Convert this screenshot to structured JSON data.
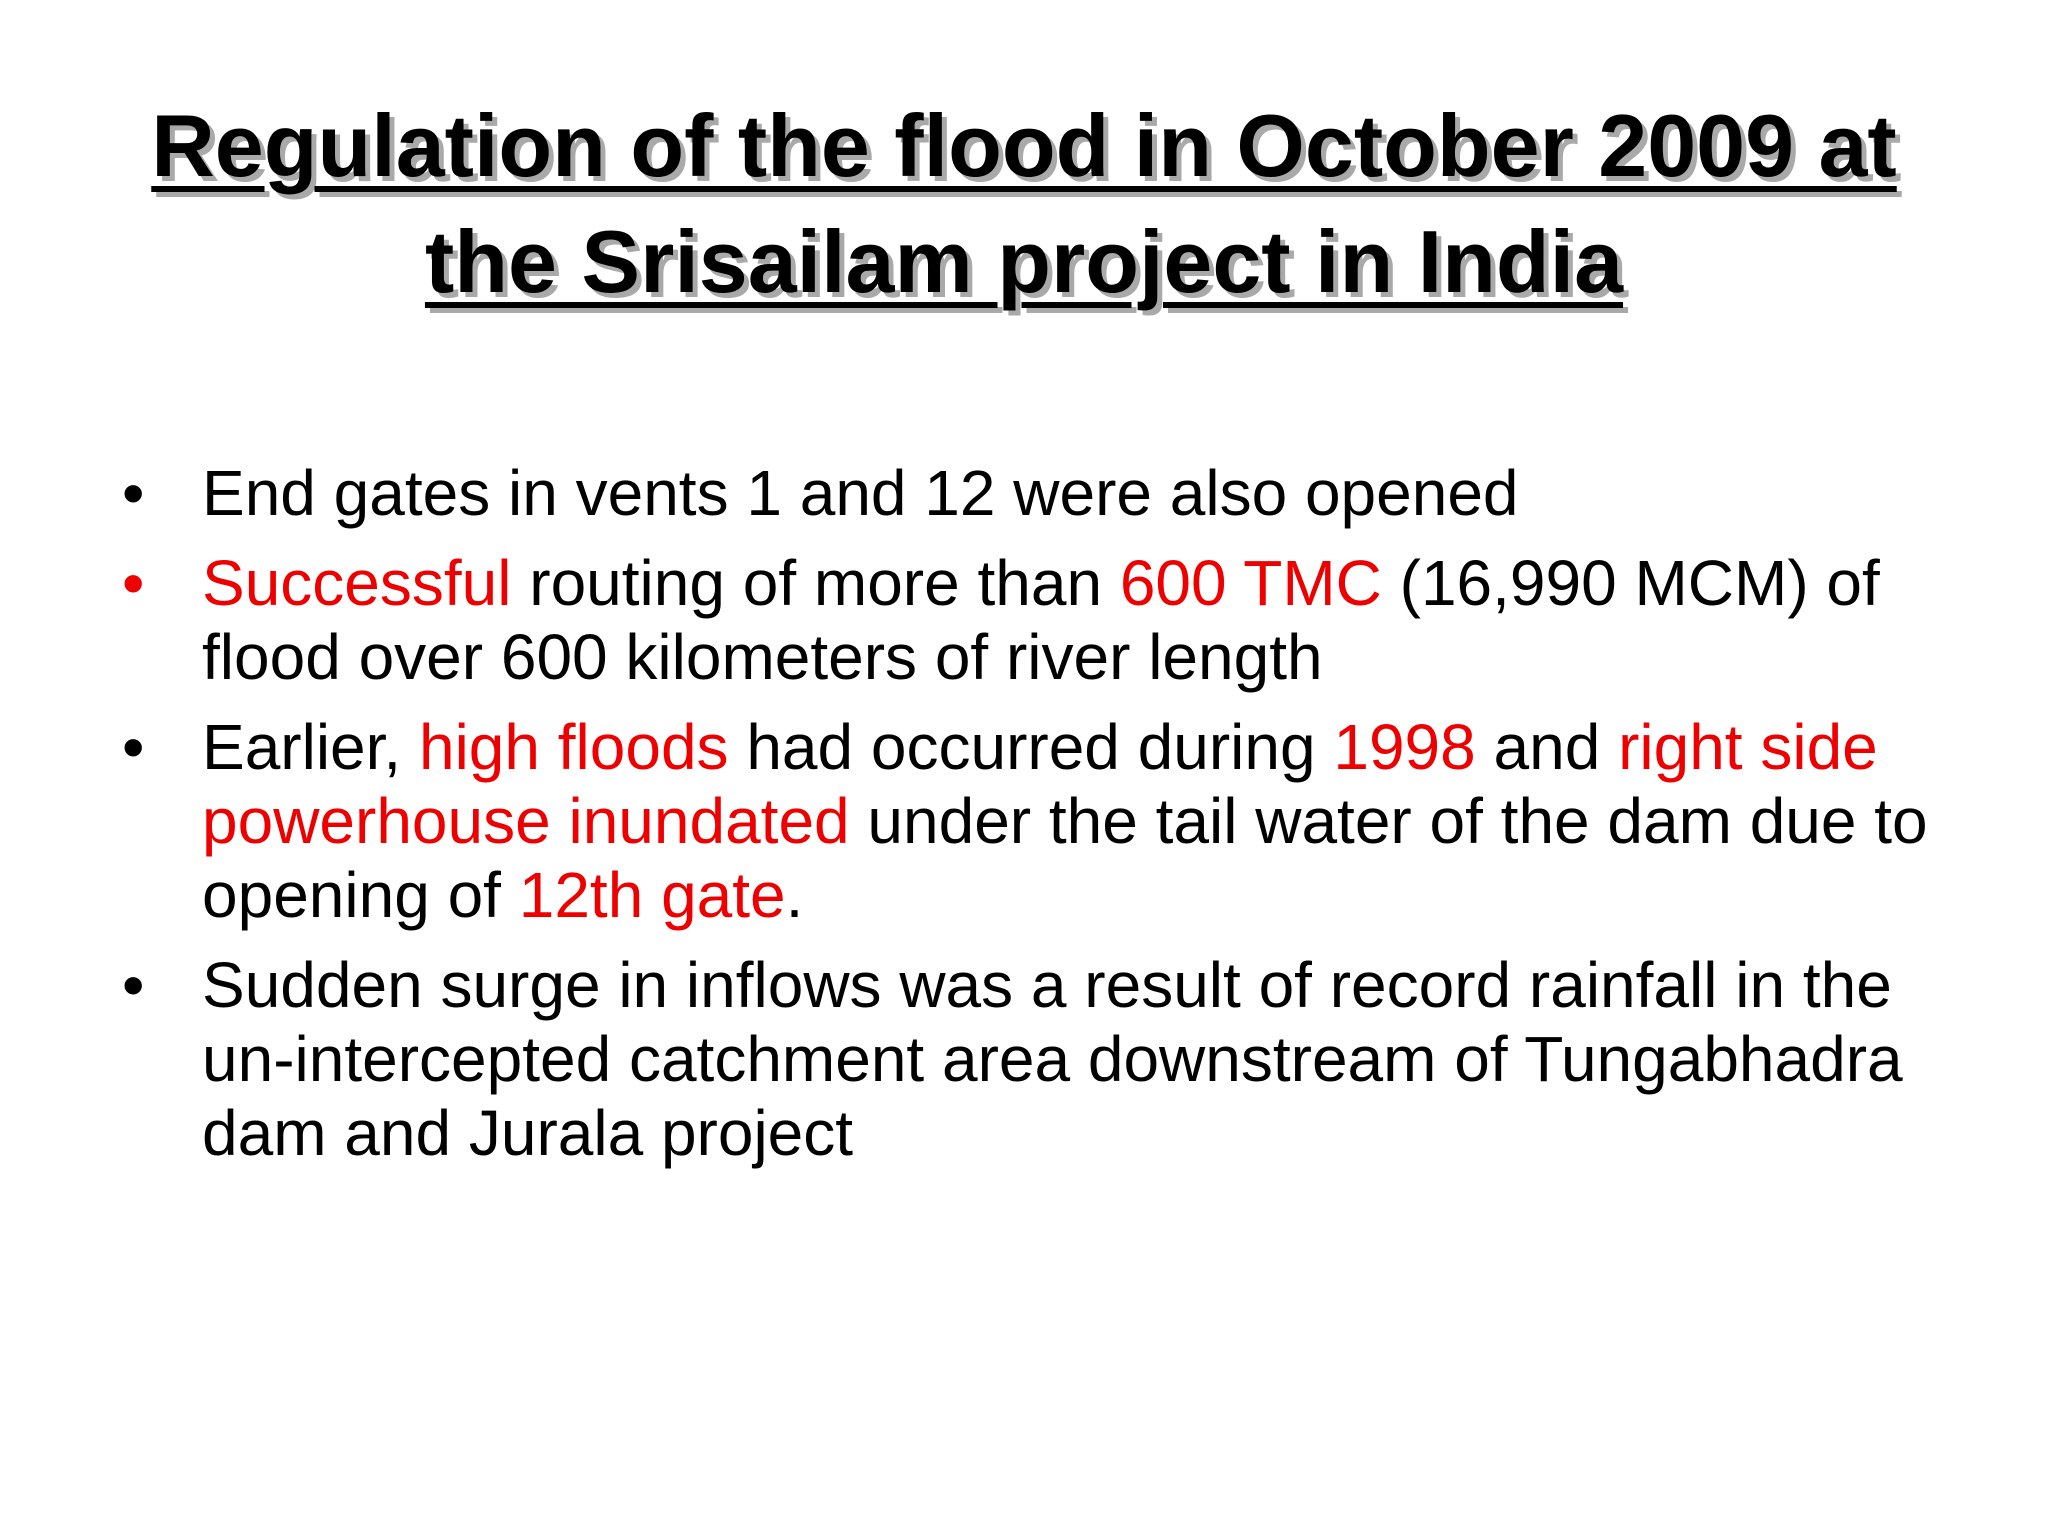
{
  "title": {
    "line1": "Regulation of the flood in October 2009 at",
    "line2": "the Srisailam project in India"
  },
  "colors": {
    "text": "#000000",
    "highlight": "#ee0000",
    "background": "#ffffff"
  },
  "bullets": [
    {
      "marker": "•",
      "marker_color": "#000000",
      "segments": [
        {
          "text": "End gates in vents 1 and 12 were also opened",
          "highlight": false
        }
      ]
    },
    {
      "marker": "•",
      "marker_color": "#ee0000",
      "segments": [
        {
          "text": "Successful",
          "highlight": true
        },
        {
          "text": " routing of more than ",
          "highlight": false
        },
        {
          "text": "600 TMC",
          "highlight": true
        },
        {
          "text": " (16,990 MCM) of flood over 600 kilometers of river length",
          "highlight": false
        }
      ]
    },
    {
      "marker": "•",
      "marker_color": "#000000",
      "segments": [
        {
          "text": "Earlier, ",
          "highlight": false
        },
        {
          "text": "high floods",
          "highlight": true
        },
        {
          "text": " had occurred during ",
          "highlight": false
        },
        {
          "text": "1998",
          "highlight": true
        },
        {
          "text": " and ",
          "highlight": false
        },
        {
          "text": "right side powerhouse inundated",
          "highlight": true
        },
        {
          "text": " under the tail water of the dam due to opening of ",
          "highlight": false
        },
        {
          "text": "12th gate",
          "highlight": true
        },
        {
          "text": ".",
          "highlight": false
        }
      ]
    },
    {
      "marker": "•",
      "marker_color": "#000000",
      "segments": [
        {
          "text": "Sudden surge in inflows was a result of record rainfall in the un-intercepted catchment area downstream of Tungabhadra dam and Jurala project",
          "highlight": false
        }
      ]
    }
  ]
}
